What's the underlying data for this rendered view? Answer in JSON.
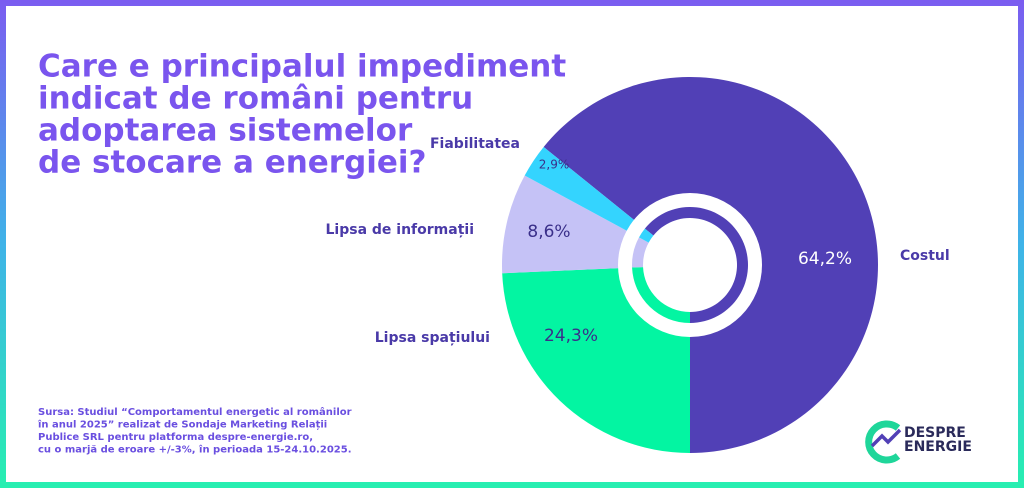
{
  "chart_data": {
    "type": "pie",
    "title": [
      "Care e principalul impediment",
      "indicat de români pentru",
      "adoptarea sistemelor",
      "de stocare a energiei?"
    ],
    "categories": [
      "Costul",
      "Lipsa spațiului",
      "Lipsa de informații",
      "Fiabilitatea"
    ],
    "values": [
      64.2,
      24.3,
      8.6,
      2.9
    ],
    "value_labels": [
      "64,2%",
      "24,3%",
      "8,6%",
      "2,9%"
    ],
    "colors": [
      "#5140b6",
      "#03f5a2",
      "#c5c2f6",
      "#34d4fe"
    ],
    "source": [
      "Sursa: Studiul “Comportamentul energetic al românilor",
      "în anul 2025” realizat de Sondaje Marketing Relații",
      "Publice SRL pentru platforma despre-energie.ro,",
      "cu o marjă de eroare +/-3%, în perioada 15-24.10.2025."
    ]
  },
  "logo": [
    "DESPRE",
    "ENERGIE"
  ]
}
